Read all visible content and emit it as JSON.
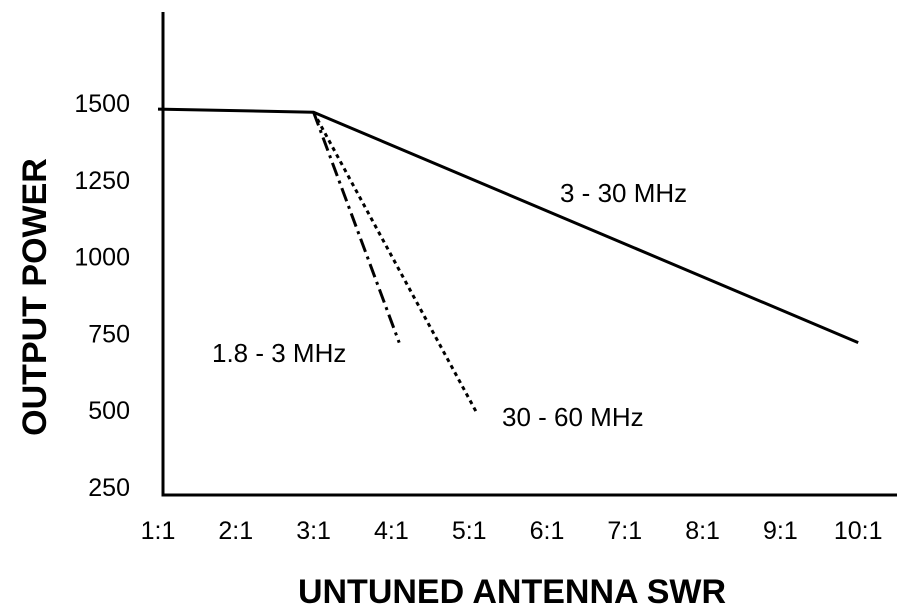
{
  "chart_data": {
    "type": "line",
    "title": "",
    "xlabel": "UNTUNED ANTENNA SWR",
    "ylabel": "OUTPUT POWER",
    "x_tick_labels": [
      "1:1",
      "2:1",
      "3:1",
      "4:1",
      "5:1",
      "6:1",
      "7:1",
      "8:1",
      "9:1",
      "10:1"
    ],
    "y_tick_labels": [
      "250",
      "500",
      "750",
      "1000",
      "1250",
      "1500"
    ],
    "y_ticks": [
      250,
      500,
      750,
      1000,
      1250,
      1500
    ],
    "xlim": [
      1,
      10.3
    ],
    "ylim": [
      230,
      1800
    ],
    "grid": false,
    "series": [
      {
        "name": "3 - 30 MHz",
        "line_style": "solid",
        "points": [
          [
            1,
            1480
          ],
          [
            3,
            1470
          ],
          [
            10,
            720
          ]
        ]
      },
      {
        "name": "1.8 - 3 MHz",
        "line_style": "dashdot",
        "points": [
          [
            3,
            1470
          ],
          [
            4.1,
            720
          ]
        ]
      },
      {
        "name": "30 - 60 MHz",
        "line_style": "dotted",
        "points": [
          [
            3,
            1470
          ],
          [
            5.1,
            490
          ]
        ]
      }
    ],
    "colors": {
      "line": "#000000",
      "axis": "#000000",
      "background": "#ffffff"
    }
  }
}
